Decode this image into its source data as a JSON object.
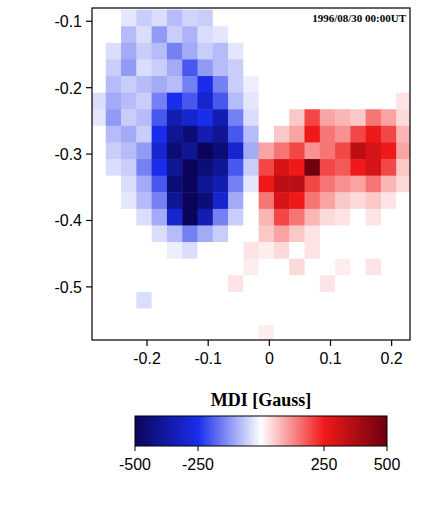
{
  "chart_data": {
    "type": "heatmap",
    "annotation": "1996/08/30 00:00UT",
    "xlim": [
      -0.29,
      0.23
    ],
    "ylim": [
      -0.58,
      -0.08
    ],
    "xticks": [
      -0.2,
      -0.1,
      0,
      0.1,
      0.2
    ],
    "yticks": [
      -0.1,
      -0.2,
      -0.3,
      -0.4,
      -0.5
    ],
    "x": [
      -0.28,
      -0.255,
      -0.23,
      -0.205,
      -0.18,
      -0.155,
      -0.13,
      -0.105,
      -0.08,
      -0.055,
      -0.03,
      -0.005,
      0.02,
      0.045,
      0.07,
      0.095,
      0.12,
      0.145,
      0.17,
      0.195,
      0.22
    ],
    "y": [
      -0.095,
      -0.12,
      -0.145,
      -0.17,
      -0.195,
      -0.22,
      -0.245,
      -0.27,
      -0.295,
      -0.32,
      -0.345,
      -0.37,
      -0.395,
      -0.42,
      -0.445,
      -0.47,
      -0.495,
      -0.52,
      -0.545,
      -0.57
    ],
    "z": [
      [
        0,
        0,
        -30,
        -60,
        -40,
        -80,
        -50,
        -60,
        0,
        0,
        0,
        0,
        0,
        0,
        0,
        0,
        0,
        0,
        0,
        0,
        0
      ],
      [
        0,
        0,
        -80,
        -40,
        -120,
        -60,
        -90,
        -40,
        -30,
        0,
        0,
        0,
        0,
        0,
        0,
        0,
        0,
        0,
        0,
        0,
        0
      ],
      [
        0,
        -40,
        -100,
        -60,
        -80,
        -150,
        -100,
        -60,
        -80,
        -30,
        0,
        0,
        0,
        0,
        0,
        0,
        0,
        0,
        0,
        0,
        0
      ],
      [
        0,
        -60,
        -120,
        -40,
        -60,
        -100,
        -200,
        -120,
        -80,
        -60,
        0,
        0,
        0,
        0,
        0,
        0,
        0,
        0,
        0,
        0,
        0
      ],
      [
        0,
        -80,
        -60,
        -80,
        -100,
        -80,
        -150,
        -250,
        -150,
        -60,
        -20,
        0,
        0,
        0,
        0,
        0,
        0,
        0,
        0,
        0,
        0
      ],
      [
        -40,
        -100,
        -80,
        -60,
        -150,
        -250,
        -200,
        -300,
        -200,
        -80,
        -30,
        0,
        0,
        0,
        0,
        0,
        0,
        0,
        0,
        0,
        30
      ],
      [
        -30,
        -120,
        -60,
        -80,
        -200,
        -350,
        -300,
        -250,
        -350,
        -150,
        -40,
        0,
        0,
        60,
        200,
        100,
        80,
        60,
        150,
        100,
        40
      ],
      [
        0,
        -80,
        -100,
        -60,
        -250,
        -400,
        -450,
        -350,
        -400,
        -200,
        -80,
        0,
        60,
        100,
        250,
        150,
        120,
        200,
        250,
        200,
        80
      ],
      [
        0,
        -60,
        -80,
        -120,
        -300,
        -450,
        -400,
        -500,
        -450,
        -300,
        -100,
        100,
        150,
        200,
        120,
        150,
        200,
        350,
        300,
        250,
        100
      ],
      [
        0,
        -40,
        -60,
        -150,
        -250,
        -400,
        -500,
        -450,
        -400,
        -200,
        -60,
        200,
        300,
        250,
        500,
        200,
        180,
        250,
        300,
        200,
        60
      ],
      [
        0,
        0,
        -40,
        -100,
        -200,
        -450,
        -500,
        -400,
        -350,
        -150,
        -30,
        250,
        350,
        350,
        200,
        150,
        120,
        100,
        150,
        80,
        40
      ],
      [
        0,
        0,
        -30,
        -80,
        -150,
        -400,
        -500,
        -450,
        -300,
        -100,
        0,
        150,
        300,
        250,
        150,
        100,
        60,
        40,
        60,
        30,
        0
      ],
      [
        0,
        0,
        0,
        -40,
        -100,
        -300,
        -500,
        -350,
        -150,
        -60,
        0,
        80,
        200,
        150,
        80,
        40,
        30,
        0,
        30,
        0,
        0
      ],
      [
        0,
        0,
        0,
        0,
        -40,
        -80,
        -150,
        -100,
        -60,
        0,
        0,
        60,
        100,
        60,
        30,
        0,
        0,
        0,
        0,
        0,
        0
      ],
      [
        0,
        0,
        0,
        0,
        0,
        -20,
        -40,
        0,
        0,
        0,
        30,
        20,
        40,
        0,
        30,
        0,
        0,
        0,
        0,
        0,
        0
      ],
      [
        0,
        0,
        0,
        0,
        0,
        0,
        0,
        0,
        0,
        0,
        20,
        0,
        0,
        40,
        0,
        0,
        20,
        0,
        30,
        0,
        0
      ],
      [
        0,
        0,
        0,
        0,
        0,
        0,
        0,
        0,
        0,
        30,
        0,
        0,
        0,
        0,
        0,
        30,
        0,
        0,
        0,
        0,
        0
      ],
      [
        0,
        0,
        0,
        -40,
        0,
        0,
        0,
        0,
        0,
        0,
        0,
        0,
        0,
        0,
        0,
        0,
        0,
        0,
        0,
        0,
        0
      ],
      [
        0,
        0,
        0,
        0,
        0,
        0,
        0,
        0,
        0,
        0,
        0,
        0,
        0,
        0,
        0,
        0,
        0,
        0,
        0,
        0,
        0
      ],
      [
        0,
        0,
        0,
        0,
        0,
        0,
        0,
        0,
        0,
        0,
        0,
        20,
        0,
        0,
        0,
        0,
        0,
        0,
        0,
        0,
        0
      ]
    ],
    "colorbar": {
      "label": "MDI [Gauss]",
      "range": [
        -500,
        500
      ],
      "ticks": [
        -500,
        -250,
        250,
        500
      ]
    }
  }
}
